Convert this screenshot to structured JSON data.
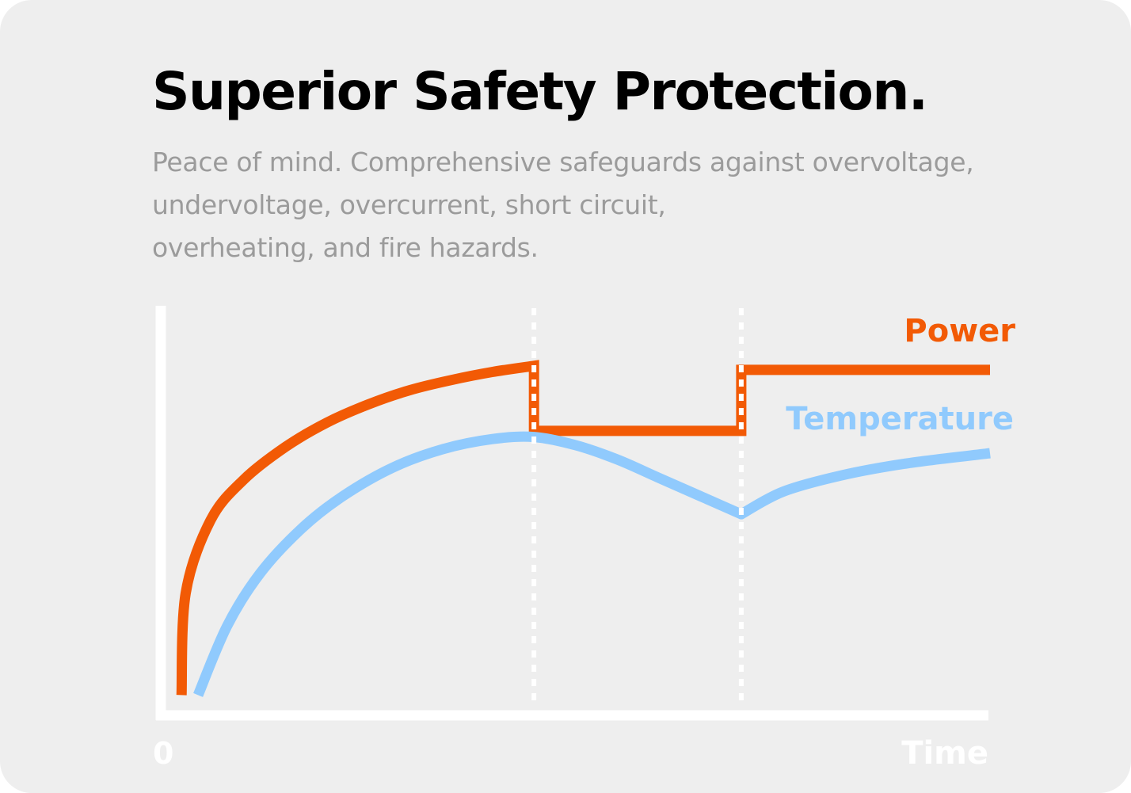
{
  "header": {
    "title": "Superior Safety Protection.",
    "subtitle_lines": [
      "Peace of mind. Comprehensive safeguards against overvoltage,",
      "undervoltage, overcurrent, short circuit,",
      "overheating, and fire hazards."
    ]
  },
  "colors": {
    "card_background": "#eeeeee",
    "axis": "#ffffff",
    "power": "#f25a05",
    "temperature": "#90cafd",
    "subtitle": "#9b9b9b",
    "title": "#000000"
  },
  "chart_data": {
    "type": "line",
    "title": "",
    "xlabel": "Time",
    "ylabel": "",
    "x_tick_labels": [
      "0"
    ],
    "xlim": [
      0,
      100
    ],
    "ylim": [
      0,
      100
    ],
    "grid": false,
    "legend": "inline labels at right end of each line",
    "vertical_markers": [
      {
        "x": 45,
        "style": "dotted"
      },
      {
        "x": 70,
        "style": "dotted"
      }
    ],
    "series": [
      {
        "name": "Power",
        "color": "#f25a05",
        "points": [
          [
            2.5,
            5
          ],
          [
            3,
            30
          ],
          [
            6,
            48
          ],
          [
            10,
            58
          ],
          [
            15,
            66
          ],
          [
            20,
            72
          ],
          [
            25,
            76.5
          ],
          [
            30,
            80
          ],
          [
            35,
            82.5
          ],
          [
            40,
            84.5
          ],
          [
            45,
            86
          ],
          [
            45,
            70
          ],
          [
            70,
            70
          ],
          [
            70,
            85
          ],
          [
            100,
            85
          ]
        ]
      },
      {
        "name": "Temperature",
        "color": "#90cafd",
        "points": [
          [
            4.5,
            5
          ],
          [
            8,
            22
          ],
          [
            12,
            35
          ],
          [
            17,
            46
          ],
          [
            22,
            54
          ],
          [
            28,
            61
          ],
          [
            34,
            65.5
          ],
          [
            40,
            68
          ],
          [
            45,
            68.5
          ],
          [
            50,
            66.5
          ],
          [
            55,
            63
          ],
          [
            60,
            58.5
          ],
          [
            65,
            54
          ],
          [
            70,
            49.5
          ],
          [
            75,
            55
          ],
          [
            82,
            59
          ],
          [
            90,
            62
          ],
          [
            100,
            64.5
          ]
        ]
      }
    ]
  }
}
